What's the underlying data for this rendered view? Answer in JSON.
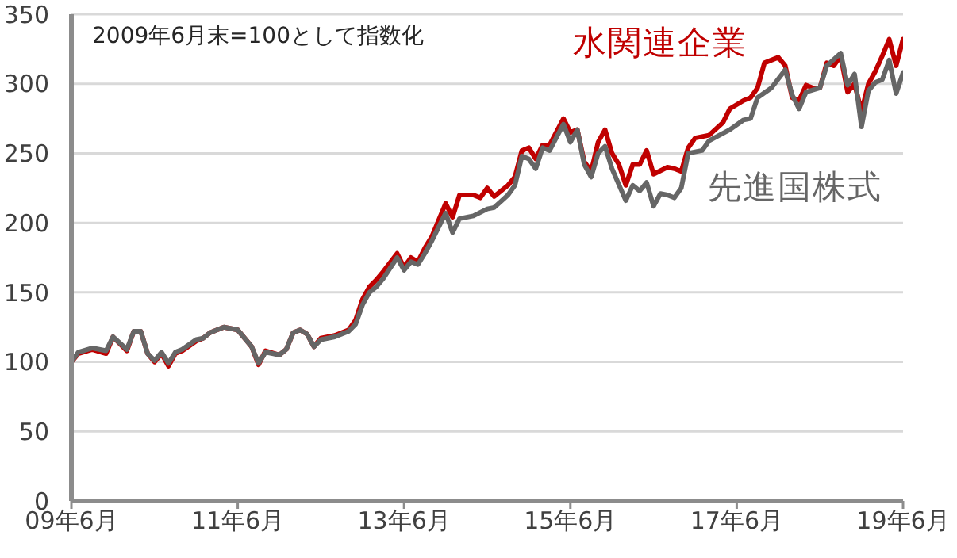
{
  "chart_data": {
    "type": "line",
    "annotations": [
      "2009年6月末=100として指数化"
    ],
    "series": [
      {
        "name": "水関連企業",
        "color": "#c00000",
        "x": [
          "2009-06",
          "2009-07",
          "2009-09",
          "2009-11",
          "2009-12",
          "2010-02",
          "2010-03",
          "2010-04",
          "2010-05",
          "2010-06",
          "2010-07",
          "2010-08",
          "2010-09",
          "2010-10",
          "2010-12",
          "2011-01",
          "2011-02",
          "2011-04",
          "2011-06",
          "2011-08",
          "2011-09",
          "2011-10",
          "2011-12",
          "2012-01",
          "2012-02",
          "2012-03",
          "2012-04",
          "2012-05",
          "2012-06",
          "2012-08",
          "2012-10",
          "2012-11",
          "2012-12",
          "2013-01",
          "2013-02",
          "2013-03",
          "2013-05",
          "2013-06",
          "2013-07",
          "2013-08",
          "2013-09",
          "2013-10",
          "2013-12",
          "2014-01",
          "2014-02",
          "2014-04",
          "2014-05",
          "2014-06",
          "2014-07",
          "2014-09",
          "2014-10",
          "2014-11",
          "2014-12",
          "2015-01",
          "2015-02",
          "2015-03",
          "2015-05",
          "2015-06",
          "2015-07",
          "2015-08",
          "2015-09",
          "2015-10",
          "2015-11",
          "2015-12",
          "2016-01",
          "2016-02",
          "2016-03",
          "2016-04",
          "2016-05",
          "2016-06",
          "2016-08",
          "2016-09",
          "2016-10",
          "2016-11",
          "2016-12",
          "2017-02",
          "2017-04",
          "2017-05",
          "2017-07",
          "2017-08",
          "2017-09",
          "2017-10",
          "2017-12",
          "2018-01",
          "2018-02",
          "2018-03",
          "2018-04",
          "2018-05",
          "2018-06",
          "2018-07",
          "2018-08",
          "2018-09",
          "2018-10",
          "2018-11",
          "2018-12",
          "2019-01",
          "2019-02",
          "2019-03",
          "2019-04",
          "2019-05",
          "2019-06"
        ],
        "values": [
          100,
          106,
          109,
          106,
          118,
          108,
          122,
          122,
          106,
          100,
          106,
          97,
          106,
          108,
          115,
          117,
          121,
          125,
          123,
          111,
          98,
          108,
          105,
          109,
          121,
          123,
          120,
          111,
          117,
          119,
          123,
          130,
          145,
          154,
          159,
          165,
          178,
          168,
          175,
          172,
          182,
          190,
          214,
          204,
          220,
          220,
          218,
          225,
          219,
          227,
          233,
          252,
          254,
          246,
          256,
          256,
          275,
          265,
          267,
          244,
          237,
          258,
          267,
          250,
          242,
          227,
          242,
          242,
          252,
          235,
          240,
          239,
          237,
          254,
          261,
          263,
          272,
          282,
          288,
          290,
          297,
          315,
          319,
          313,
          290,
          288,
          299,
          297,
          297,
          315,
          313,
          320,
          294,
          300,
          280,
          300,
          309,
          320,
          332,
          313,
          332
        ]
      },
      {
        "name": "先進国株式",
        "color": "#666666",
        "x": [
          "2009-06",
          "2009-07",
          "2009-09",
          "2009-11",
          "2009-12",
          "2010-02",
          "2010-03",
          "2010-04",
          "2010-05",
          "2010-06",
          "2010-07",
          "2010-08",
          "2010-09",
          "2010-10",
          "2010-12",
          "2011-01",
          "2011-02",
          "2011-04",
          "2011-06",
          "2011-08",
          "2011-09",
          "2011-10",
          "2011-12",
          "2012-01",
          "2012-02",
          "2012-03",
          "2012-04",
          "2012-05",
          "2012-06",
          "2012-08",
          "2012-10",
          "2012-11",
          "2012-12",
          "2013-01",
          "2013-02",
          "2013-03",
          "2013-05",
          "2013-06",
          "2013-07",
          "2013-08",
          "2013-09",
          "2013-10",
          "2013-12",
          "2014-01",
          "2014-02",
          "2014-04",
          "2014-06",
          "2014-07",
          "2014-09",
          "2014-10",
          "2014-11",
          "2014-12",
          "2015-01",
          "2015-02",
          "2015-03",
          "2015-05",
          "2015-06",
          "2015-07",
          "2015-08",
          "2015-09",
          "2015-10",
          "2015-11",
          "2015-12",
          "2016-02",
          "2016-03",
          "2016-04",
          "2016-05",
          "2016-06",
          "2016-07",
          "2016-08",
          "2016-09",
          "2016-10",
          "2016-11",
          "2017-01",
          "2017-02",
          "2017-05",
          "2017-07",
          "2017-08",
          "2017-09",
          "2017-11",
          "2018-01",
          "2018-02",
          "2018-03",
          "2018-04",
          "2018-06",
          "2018-07",
          "2018-09",
          "2018-10",
          "2018-11",
          "2018-12",
          "2019-01",
          "2019-02",
          "2019-03",
          "2019-04",
          "2019-05",
          "2019-06"
        ],
        "values": [
          100,
          107,
          110,
          108,
          118,
          109,
          122,
          122,
          106,
          101,
          107,
          99,
          107,
          109,
          116,
          117,
          121,
          125,
          123,
          111,
          99,
          107,
          105,
          109,
          121,
          123,
          120,
          111,
          116,
          118,
          122,
          127,
          141,
          150,
          154,
          160,
          175,
          166,
          172,
          170,
          178,
          187,
          207,
          193,
          203,
          205,
          210,
          211,
          220,
          227,
          248,
          246,
          239,
          254,
          252,
          271,
          258,
          267,
          242,
          233,
          250,
          255,
          239,
          216,
          227,
          223,
          229,
          212,
          221,
          220,
          218,
          225,
          250,
          252,
          259,
          267,
          274,
          275,
          290,
          297,
          310,
          292,
          282,
          294,
          297,
          313,
          322,
          299,
          307,
          269,
          295,
          301,
          303,
          317,
          293,
          308
        ]
      }
    ],
    "xlim": [
      "2009-06",
      "2019-06"
    ],
    "xticks": [
      {
        "value": "2009-06",
        "label": "09年6月"
      },
      {
        "value": "2011-06",
        "label": "11年6月"
      },
      {
        "value": "2013-06",
        "label": "13年6月"
      },
      {
        "value": "2015-06",
        "label": "15年6月"
      },
      {
        "value": "2017-06",
        "label": "17年6月"
      },
      {
        "value": "2019-06",
        "label": "19年6月"
      }
    ],
    "ylim": [
      0,
      350
    ],
    "yticks": [
      0,
      50,
      100,
      150,
      200,
      250,
      300,
      350
    ],
    "grid": "y",
    "marker": "none",
    "line_style": "solid"
  }
}
